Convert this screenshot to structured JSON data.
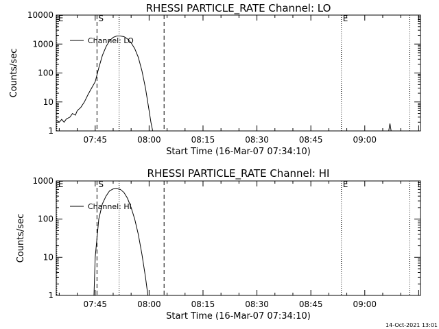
{
  "footer": {
    "timestamp": "14-Oct-2021 13:01"
  },
  "colors": {
    "line": "#000000",
    "background": "#ffffff"
  },
  "chart_data": [
    {
      "type": "line",
      "title": "RHESSI PARTICLE_RATE Channel: LO",
      "xlabel": "Start Time (16-Mar-07 07:34:10)",
      "ylabel": "Counts/sec",
      "yscale": "log",
      "ylim": [
        1,
        10000
      ],
      "xlim": [
        "07:34:10",
        "09:15:30"
      ],
      "x_ticks": [
        "07:45",
        "08:00",
        "08:15",
        "08:30",
        "08:45",
        "09:00"
      ],
      "y_ticks": [
        "1",
        "10",
        "100",
        "1000",
        "10000"
      ],
      "legend": {
        "position": "top-left",
        "entries": [
          "Channel: LO"
        ]
      },
      "markers": [
        {
          "label": "E",
          "time": "07:34:20",
          "style": "dotted"
        },
        {
          "label": "S",
          "time": "07:45:30",
          "style": "dashed"
        },
        {
          "label": "",
          "time": "07:51:40",
          "style": "dotted"
        },
        {
          "label": "",
          "time": "08:04:10",
          "style": "dashed"
        },
        {
          "label": "E",
          "time": "08:53:30",
          "style": "dotted"
        },
        {
          "label": "",
          "time": "09:12:30",
          "style": "dotted"
        }
      ],
      "series": [
        {
          "name": "Channel: LO",
          "points": [
            [
              "07:34:10",
              2.4
            ],
            [
              "07:35:00",
              2.0
            ],
            [
              "07:35:40",
              2.5
            ],
            [
              "07:36:20",
              2.0
            ],
            [
              "07:37:00",
              2.6
            ],
            [
              "07:38:00",
              3.0
            ],
            [
              "07:38:40",
              4.0
            ],
            [
              "07:39:30",
              3.5
            ],
            [
              "07:40:00",
              5.0
            ],
            [
              "07:41:00",
              6.5
            ],
            [
              "07:42:00",
              10.0
            ],
            [
              "07:43:00",
              18.0
            ],
            [
              "07:44:00",
              30.0
            ],
            [
              "07:45:00",
              50.0
            ],
            [
              "07:46:00",
              150.0
            ],
            [
              "07:47:00",
              400.0
            ],
            [
              "07:48:00",
              800.0
            ],
            [
              "07:49:00",
              1300.0
            ],
            [
              "07:50:00",
              1700.0
            ],
            [
              "07:51:00",
              1900.0
            ],
            [
              "07:52:00",
              1900.0
            ],
            [
              "07:53:00",
              1800.0
            ],
            [
              "07:54:00",
              1500.0
            ],
            [
              "07:55:00",
              1100.0
            ],
            [
              "07:56:00",
              700.0
            ],
            [
              "07:57:00",
              350.0
            ],
            [
              "07:58:00",
              120.0
            ],
            [
              "07:59:00",
              30.0
            ],
            [
              "08:00:00",
              5.0
            ],
            [
              "08:00:30",
              2.0
            ],
            [
              "08:01:00",
              1.0
            ]
          ]
        },
        {
          "name": "",
          "points": [
            [
              "09:06:40",
              1.0
            ],
            [
              "09:07:00",
              1.8
            ],
            [
              "09:07:20",
              1.0
            ]
          ]
        }
      ]
    },
    {
      "type": "line",
      "title": "RHESSI PARTICLE_RATE Channel: HI",
      "xlabel": "Start Time (16-Mar-07 07:34:10)",
      "ylabel": "Counts/sec",
      "yscale": "log",
      "ylim": [
        1,
        1000
      ],
      "xlim": [
        "07:34:10",
        "09:15:30"
      ],
      "x_ticks": [
        "07:45",
        "08:00",
        "08:15",
        "08:30",
        "08:45",
        "09:00"
      ],
      "y_ticks": [
        "1",
        "10",
        "100",
        "1000"
      ],
      "legend": {
        "position": "top-left",
        "entries": [
          "Channel: HI"
        ]
      },
      "markers": [
        {
          "label": "E",
          "time": "07:34:20",
          "style": "dotted"
        },
        {
          "label": "S",
          "time": "07:45:30",
          "style": "dashed"
        },
        {
          "label": "",
          "time": "07:51:40",
          "style": "dotted"
        },
        {
          "label": "",
          "time": "08:04:10",
          "style": "dashed"
        },
        {
          "label": "E",
          "time": "08:53:30",
          "style": "dotted"
        },
        {
          "label": "",
          "time": "09:12:30",
          "style": "dotted"
        }
      ],
      "series": [
        {
          "name": "Channel: HI",
          "points": [
            [
              "07:44:40",
              1.0
            ],
            [
              "07:45:00",
              10.0
            ],
            [
              "07:46:00",
              100.0
            ],
            [
              "07:47:00",
              250.0
            ],
            [
              "07:48:00",
              400.0
            ],
            [
              "07:49:00",
              550.0
            ],
            [
              "07:50:00",
              620.0
            ],
            [
              "07:51:00",
              630.0
            ],
            [
              "07:52:00",
              600.0
            ],
            [
              "07:53:00",
              500.0
            ],
            [
              "07:54:00",
              350.0
            ],
            [
              "07:55:00",
              200.0
            ],
            [
              "07:56:00",
              100.0
            ],
            [
              "07:57:00",
              40.0
            ],
            [
              "07:58:00",
              12.0
            ],
            [
              "07:59:00",
              3.0
            ],
            [
              "07:59:40",
              1.0
            ]
          ]
        }
      ]
    }
  ]
}
